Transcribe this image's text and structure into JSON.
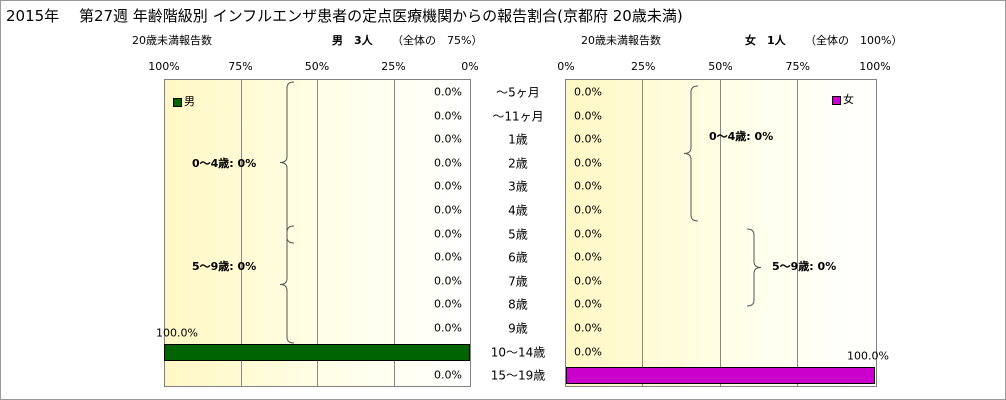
{
  "title": "2015年　 第27週 年齢階級別 インフルエンザ患者の定点医療機関からの報告割合(京都府 20歳未満)",
  "left_header": {
    "subtitle": "20歳未満報告数",
    "group": "男　3人",
    "share": "（全体の　75%）"
  },
  "right_header": {
    "subtitle": "20歳未満報告数",
    "group": "女　1人",
    "share": "（全体の　100%）"
  },
  "colors": {
    "male": "#006400",
    "female": "#cc00cc"
  },
  "chart_data": [
    {
      "type": "bar",
      "orientation": "horizontal",
      "axis_direction": "reversed",
      "categories": [
        "～5ヶ月",
        "～11ヶ月",
        "1歳",
        "2歳",
        "3歳",
        "4歳",
        "5歳",
        "6歳",
        "7歳",
        "8歳",
        "9歳",
        "10～14歳",
        "15～19歳"
      ],
      "series": [
        {
          "name": "男",
          "values": [
            0,
            0,
            0,
            0,
            0,
            0,
            0,
            0,
            0,
            0,
            0,
            100,
            0
          ]
        }
      ],
      "value_labels": [
        "0.0%",
        "0.0%",
        "0.0%",
        "0.0%",
        "0.0%",
        "0.0%",
        "0.0%",
        "0.0%",
        "0.0%",
        "0.0%",
        "0.0%",
        "100.0%",
        "0.0%"
      ],
      "xlim": [
        0,
        100
      ],
      "tick_labels": [
        "100%",
        "75%",
        "50%",
        "25%",
        "0%"
      ],
      "legend": "top-left",
      "brace_labels": [
        "0～4歳: 0%",
        "5～9歳: 0%"
      ]
    },
    {
      "type": "bar",
      "orientation": "horizontal",
      "categories": [
        "～5ヶ月",
        "～11ヶ月",
        "1歳",
        "2歳",
        "3歳",
        "4歳",
        "5歳",
        "6歳",
        "7歳",
        "8歳",
        "9歳",
        "10～14歳",
        "15～19歳"
      ],
      "series": [
        {
          "name": "女",
          "values": [
            0,
            0,
            0,
            0,
            0,
            0,
            0,
            0,
            0,
            0,
            0,
            0,
            100
          ]
        }
      ],
      "value_labels": [
        "0.0%",
        "0.0%",
        "0.0%",
        "0.0%",
        "0.0%",
        "0.0%",
        "0.0%",
        "0.0%",
        "0.0%",
        "0.0%",
        "0.0%",
        "0.0%",
        "100.0%"
      ],
      "xlim": [
        0,
        100
      ],
      "tick_labels": [
        "0%",
        "25%",
        "50%",
        "75%",
        "100%"
      ],
      "legend": "top-right",
      "brace_labels": [
        "0～4歳: 0%",
        "5～9歳: 0%"
      ]
    }
  ]
}
